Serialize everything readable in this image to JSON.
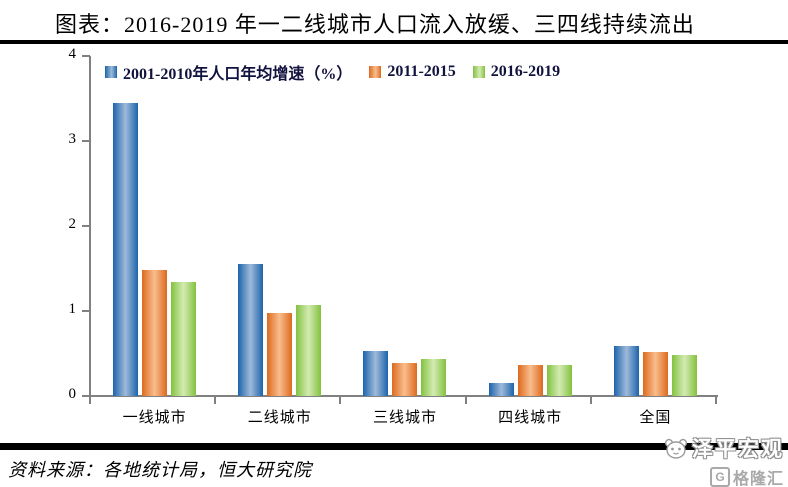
{
  "title": "图表：2016-2019 年一二线城市人口流入放缓、三四线持续流出",
  "source": "资料来源：各地统计局，恒大研究院",
  "watermark": {
    "brand": "泽平宏观",
    "logo2": "格隆汇"
  },
  "colors": {
    "axis": "#808080",
    "title_text": "#000000",
    "legend_text": "#12123f",
    "rule": "#000000",
    "watermark_gray": "#a9a9a9"
  },
  "chart_data": {
    "type": "bar",
    "categories": [
      "一线城市",
      "二线城市",
      "三线城市",
      "四线城市",
      "全国"
    ],
    "series": [
      {
        "name": "2001-2010年人口年均增速（%）",
        "edge_color": "#1C64AB",
        "center_color": "#9FBADA",
        "values": [
          3.45,
          1.55,
          0.53,
          0.15,
          0.59
        ]
      },
      {
        "name": "2011-2015",
        "edge_color": "#DC6A1E",
        "center_color": "#F9BD8D",
        "values": [
          1.48,
          0.98,
          0.39,
          0.36,
          0.52
        ]
      },
      {
        "name": "2016-2019",
        "edge_color": "#83C13F",
        "center_color": "#D3EBB2",
        "values": [
          1.34,
          1.07,
          0.44,
          0.37,
          0.48
        ]
      }
    ],
    "ylim": [
      0,
      4
    ],
    "yticks": [
      0,
      1,
      2,
      3,
      4
    ],
    "grid": false,
    "legend_position": "top-inside"
  }
}
